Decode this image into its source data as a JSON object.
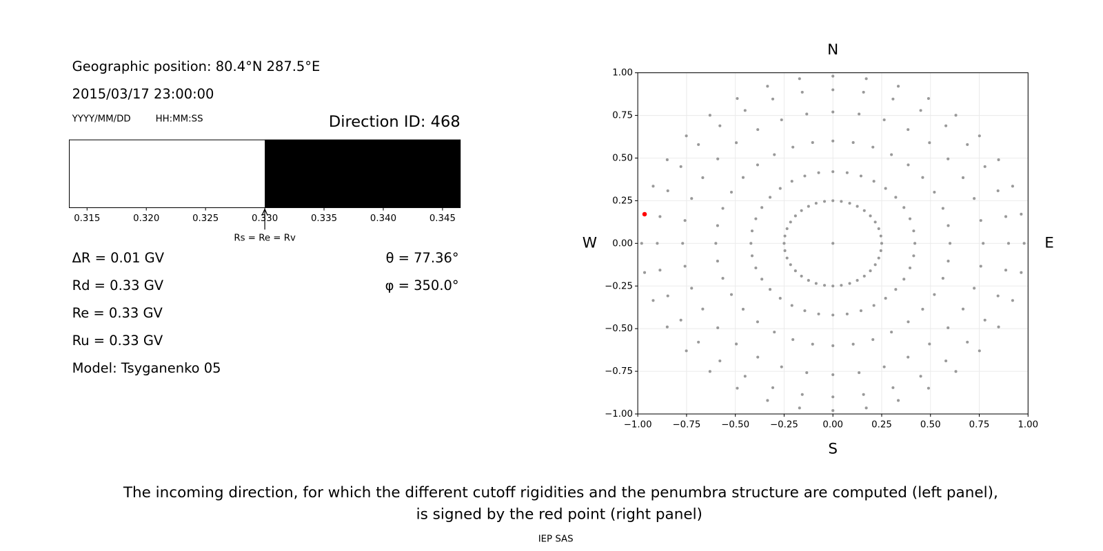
{
  "header": {
    "position": "Geographic position: 80.4°N 287.5°E",
    "datetime": "2015/03/17 23:00:00",
    "date_format": "YYYY/MM/DD",
    "time_format": "HH:MM:SS"
  },
  "info": {
    "left": [
      "ΔR = 0.01 GV",
      "Rd = 0.33 GV",
      "Re = 0.33 GV",
      "Ru = 0.33 GV",
      "Model: Tsyganenko 05"
    ],
    "right": [
      "θ = 77.36°",
      "φ = 350.0°"
    ]
  },
  "caption": [
    "The incoming direction, for which the different cutoff rigidities and the penumbra structure are computed (left panel),",
    "is signed by the red point (right panel)"
  ],
  "footer": "IEP SAS",
  "chart_data": [
    {
      "type": "penumbra",
      "title": "Direction ID: 468",
      "xlim": [
        0.3135,
        0.3465
      ],
      "xticks": [
        0.315,
        {
          "value": 0.32,
          "label": "0.320"
        },
        0.325,
        {
          "value": 0.33,
          "label": "0.330"
        },
        0.335,
        {
          "value": 0.34,
          "label": "0.340"
        },
        0.345
      ],
      "segments": [
        {
          "from": 0.3135,
          "to": 0.33,
          "color": "#ffffff"
        },
        {
          "from": 0.33,
          "to": 0.3465,
          "color": "#000000"
        }
      ],
      "annotation": {
        "value": 0.33,
        "label": "Rs = Re = Rv"
      }
    },
    {
      "type": "scatter",
      "compass": {
        "top": "N",
        "bottom": "S",
        "left": "W",
        "right": "E"
      },
      "grid": true,
      "xlim": [
        -1,
        1
      ],
      "ylim": [
        -1,
        1
      ],
      "xticks": [
        {
          "value": -1,
          "label": "−1.00"
        },
        {
          "value": -0.75,
          "label": "−0.75"
        },
        {
          "value": -0.5,
          "label": "−0.50"
        },
        {
          "value": -0.25,
          "label": "−0.25"
        },
        {
          "value": 0,
          "label": "0.00"
        },
        {
          "value": 0.25,
          "label": "0.25"
        },
        {
          "value": 0.5,
          "label": "0.50"
        },
        {
          "value": 0.75,
          "label": "0.75"
        },
        {
          "value": 1,
          "label": "1.00"
        }
      ],
      "yticks": [
        {
          "value": -1,
          "label": "−1.00"
        },
        {
          "value": -0.75,
          "label": "−0.75"
        },
        {
          "value": -0.5,
          "label": "−0.50"
        },
        {
          "value": -0.25,
          "label": "−0.25"
        },
        {
          "value": 0,
          "label": "0.00"
        },
        {
          "value": 0.25,
          "label": "0.25"
        },
        {
          "value": 0.5,
          "label": "0.50"
        },
        {
          "value": 0.75,
          "label": "0.75"
        },
        {
          "value": 1,
          "label": "1.00"
        }
      ],
      "series": [
        {
          "color": "#999999",
          "x": [
            0
          ],
          "y": [
            0
          ]
        },
        {
          "color": "#999999",
          "x": [
            0.25,
            0.246,
            0.235,
            0.217,
            0.192,
            0.161,
            0.125,
            0.086,
            0.043,
            0,
            -0.043,
            -0.086,
            -0.125,
            -0.161,
            -0.192,
            -0.217,
            -0.235,
            -0.246,
            -0.25,
            -0.246,
            -0.235,
            -0.217,
            -0.192,
            -0.161,
            -0.125,
            -0.086,
            -0.043,
            0,
            0.043,
            0.086,
            0.125,
            0.161,
            0.192,
            0.217,
            0.235,
            0.246
          ],
          "y": [
            0,
            0.043,
            0.086,
            0.125,
            0.161,
            0.192,
            0.217,
            0.235,
            0.246,
            0.25,
            0.246,
            0.235,
            0.217,
            0.192,
            0.161,
            0.125,
            0.086,
            0.043,
            0,
            -0.043,
            -0.086,
            -0.125,
            -0.161,
            -0.192,
            -0.217,
            -0.235,
            -0.246,
            -0.25,
            -0.246,
            -0.235,
            -0.217,
            -0.192,
            -0.161,
            -0.125,
            -0.086,
            -0.043
          ]
        },
        {
          "color": "#999999",
          "x": [
            0.42,
            0.414,
            0.395,
            0.364,
            0.322,
            0.27,
            0.21,
            0.144,
            0.073,
            0,
            -0.073,
            -0.144,
            -0.21,
            -0.27,
            -0.322,
            -0.364,
            -0.395,
            -0.414,
            -0.42,
            -0.414,
            -0.395,
            -0.364,
            -0.322,
            -0.27,
            -0.21,
            -0.144,
            -0.073,
            0,
            0.073,
            0.144,
            0.21,
            0.27,
            0.322,
            0.364,
            0.395,
            0.414
          ],
          "y": [
            0,
            0.073,
            0.144,
            0.21,
            0.27,
            0.322,
            0.364,
            0.395,
            0.414,
            0.42,
            0.414,
            0.395,
            0.364,
            0.322,
            0.27,
            0.21,
            0.144,
            0.073,
            0,
            -0.073,
            -0.144,
            -0.21,
            -0.27,
            -0.322,
            -0.364,
            -0.395,
            -0.414,
            -0.42,
            -0.414,
            -0.395,
            -0.364,
            -0.322,
            -0.27,
            -0.21,
            -0.144,
            -0.073
          ]
        },
        {
          "color": "#999999",
          "x": [
            0.6,
            0.591,
            0.564,
            0.52,
            0.46,
            0.386,
            0.3,
            0.205,
            0.104,
            0,
            -0.104,
            -0.205,
            -0.3,
            -0.386,
            -0.46,
            -0.52,
            -0.564,
            -0.591,
            -0.6,
            -0.591,
            -0.564,
            -0.52,
            -0.46,
            -0.386,
            -0.3,
            -0.205,
            -0.104,
            0,
            0.104,
            0.205,
            0.3,
            0.386,
            0.46,
            0.52,
            0.564,
            0.591
          ],
          "y": [
            0,
            0.104,
            0.205,
            0.3,
            0.386,
            0.46,
            0.52,
            0.564,
            0.591,
            0.6,
            0.591,
            0.564,
            0.52,
            0.46,
            0.386,
            0.3,
            0.205,
            0.104,
            0,
            -0.104,
            -0.205,
            -0.3,
            -0.386,
            -0.46,
            -0.52,
            -0.564,
            -0.591,
            -0.6,
            -0.591,
            -0.564,
            -0.52,
            -0.46,
            -0.386,
            -0.3,
            -0.205,
            -0.104
          ]
        },
        {
          "color": "#999999",
          "x": [
            0.77,
            0.758,
            0.724,
            0.667,
            0.59,
            0.495,
            0.385,
            0.263,
            0.134,
            0,
            -0.134,
            -0.263,
            -0.385,
            -0.495,
            -0.59,
            -0.667,
            -0.724,
            -0.758,
            -0.77,
            -0.758,
            -0.724,
            -0.667,
            -0.59,
            -0.495,
            -0.385,
            -0.263,
            -0.134,
            0,
            0.134,
            0.263,
            0.385,
            0.495,
            0.59,
            0.667,
            0.724,
            0.758
          ],
          "y": [
            0,
            0.134,
            0.263,
            0.385,
            0.495,
            0.59,
            0.667,
            0.724,
            0.758,
            0.77,
            0.758,
            0.724,
            0.667,
            0.59,
            0.495,
            0.385,
            0.263,
            0.134,
            0,
            -0.134,
            -0.263,
            -0.385,
            -0.495,
            -0.59,
            -0.667,
            -0.724,
            -0.758,
            -0.77,
            -0.758,
            -0.724,
            -0.667,
            -0.59,
            -0.495,
            -0.385,
            -0.263,
            -0.134
          ]
        },
        {
          "color": "#999999",
          "x": [
            0.9,
            0.886,
            0.846,
            0.779,
            0.689,
            0.579,
            0.45,
            0.308,
            0.157,
            0,
            -0.157,
            -0.308,
            -0.45,
            -0.579,
            -0.689,
            -0.779,
            -0.846,
            -0.886,
            -0.9,
            -0.886,
            -0.846,
            -0.779,
            -0.689,
            -0.579,
            -0.45,
            -0.308,
            -0.157,
            0,
            0.157,
            0.308,
            0.45,
            0.579,
            0.689,
            0.779,
            0.846,
            0.886
          ],
          "y": [
            0,
            0.157,
            0.308,
            0.45,
            0.579,
            0.689,
            0.779,
            0.846,
            0.886,
            0.9,
            0.886,
            0.846,
            0.779,
            0.689,
            0.579,
            0.45,
            0.308,
            0.157,
            0,
            -0.157,
            -0.308,
            -0.45,
            -0.579,
            -0.689,
            -0.779,
            -0.846,
            -0.886,
            -0.9,
            -0.886,
            -0.846,
            -0.779,
            -0.689,
            -0.579,
            -0.45,
            -0.308,
            -0.157
          ]
        },
        {
          "color": "#999999",
          "x": [
            0.98,
            0.965,
            0.921,
            0.849,
            0.751,
            0.63,
            0.49,
            0.335,
            0.171,
            0,
            -0.171,
            -0.335,
            -0.49,
            -0.63,
            -0.751,
            -0.849,
            -0.921,
            -0.965,
            -0.98,
            -0.965,
            -0.921,
            -0.849,
            -0.751,
            -0.63,
            -0.49,
            -0.335,
            -0.171,
            0,
            0.171,
            0.335,
            0.49,
            0.63,
            0.751,
            0.849,
            0.921,
            0.965
          ],
          "y": [
            0,
            0.171,
            0.335,
            0.49,
            0.63,
            0.751,
            0.849,
            0.921,
            0.965,
            0.98,
            0.965,
            0.921,
            0.849,
            0.751,
            0.63,
            0.49,
            0.335,
            0.171,
            0,
            -0.171,
            -0.335,
            -0.49,
            -0.63,
            -0.751,
            -0.849,
            -0.921,
            -0.965,
            -0.98,
            -0.965,
            -0.921,
            -0.849,
            -0.751,
            -0.63,
            -0.49,
            -0.335,
            -0.171
          ]
        },
        {
          "color": "#ff0000",
          "x": [
            -0.965
          ],
          "y": [
            0.171
          ]
        }
      ]
    }
  ]
}
